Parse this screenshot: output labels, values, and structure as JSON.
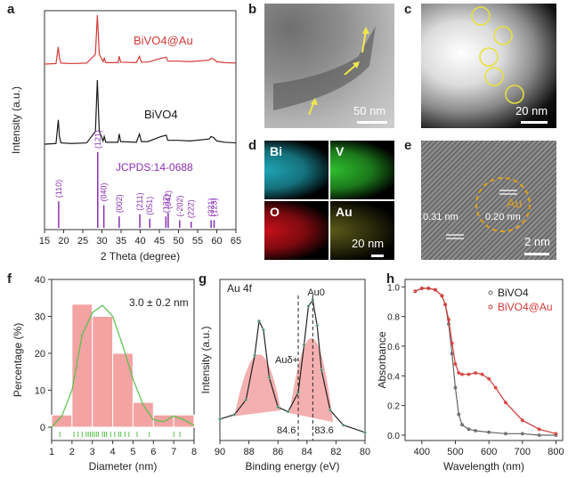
{
  "panels": {
    "a": "a",
    "b": "b",
    "c": "c",
    "d": "d",
    "e": "e",
    "f": "f",
    "g": "g",
    "h": "h"
  },
  "chart_data": [
    {
      "panel": "a",
      "type": "line",
      "xlabel": "2 Theta (degree)",
      "ylabel": "Intensity (a.u.)",
      "xlim": [
        15,
        65
      ],
      "xticks": [
        15,
        20,
        25,
        30,
        35,
        40,
        45,
        50,
        55,
        60,
        65
      ],
      "series": [
        {
          "name": "BiVO4@Au",
          "color": "#d33a36",
          "x": [
            15,
            18,
            18.6,
            18.9,
            19.3,
            22,
            26,
            28.3,
            28.8,
            29.3,
            30.3,
            30.6,
            31,
            34.2,
            34.5,
            34.9,
            39,
            39.8,
            40.3,
            42,
            45.5,
            46.8,
            47.2,
            50,
            53,
            58,
            58.5,
            59.2,
            60,
            62,
            65
          ],
          "y": [
            0,
            0.01,
            0.35,
            0.12,
            0.02,
            0.01,
            0.02,
            0.2,
            1.0,
            0.2,
            0.05,
            0.12,
            0.03,
            0.03,
            0.16,
            0.04,
            0.03,
            0.16,
            0.04,
            0.04,
            0.12,
            0.14,
            0.06,
            0.06,
            0.05,
            0.08,
            0.12,
            0.1,
            0.05,
            0.03,
            0.02
          ]
        },
        {
          "name": "BiVO4",
          "color": "#1a1a1a",
          "x": [
            15,
            18,
            18.6,
            18.9,
            19.3,
            22,
            26,
            28.3,
            28.8,
            29.3,
            30.3,
            30.6,
            31,
            34.2,
            34.5,
            34.9,
            39,
            39.8,
            40.3,
            42,
            45.5,
            46.8,
            47.2,
            50,
            53,
            58,
            58.5,
            59.2,
            60,
            62,
            65
          ],
          "y": [
            0,
            0.01,
            0.38,
            0.12,
            0.02,
            0.01,
            0.02,
            0.2,
            1.0,
            0.2,
            0.05,
            0.12,
            0.03,
            0.03,
            0.16,
            0.04,
            0.03,
            0.16,
            0.04,
            0.04,
            0.12,
            0.14,
            0.06,
            0.06,
            0.05,
            0.08,
            0.12,
            0.1,
            0.05,
            0.03,
            0.02
          ]
        }
      ],
      "reference": {
        "name": "JCPDS:14-0688",
        "color": "#8b2fb5",
        "peaks": [
          {
            "x": 18.7,
            "h": 0.35,
            "label": "(110)"
          },
          {
            "x": 28.9,
            "h": 1.0,
            "label": "(121)"
          },
          {
            "x": 30.5,
            "h": 0.3,
            "label": "(040)"
          },
          {
            "x": 34.5,
            "h": 0.15,
            "label": "(002)"
          },
          {
            "x": 39.9,
            "h": 0.18,
            "label": "(211)"
          },
          {
            "x": 42.5,
            "h": 0.12,
            "label": "(051)"
          },
          {
            "x": 46.7,
            "h": 0.15,
            "label": "(132)"
          },
          {
            "x": 47.3,
            "h": 0.2,
            "label": "(042)"
          },
          {
            "x": 50.3,
            "h": 0.1,
            "label": "(-202)"
          },
          {
            "x": 53.3,
            "h": 0.08,
            "label": "(222)"
          },
          {
            "x": 58.5,
            "h": 0.1,
            "label": "(321)"
          },
          {
            "x": 59.3,
            "h": 0.1,
            "label": "(123)"
          }
        ]
      }
    },
    {
      "panel": "f",
      "type": "bar",
      "xlabel": "Diameter (nm)",
      "ylabel": "Percentage (%)",
      "annotation": "3.0 ± 0.2 nm",
      "xlim": [
        1,
        8
      ],
      "ylim": [
        0,
        40
      ],
      "xticks": [
        1,
        2,
        3,
        4,
        5,
        6,
        7,
        8
      ],
      "yticks": [
        0,
        10,
        20,
        30,
        40
      ],
      "bins": [
        [
          1,
          2
        ],
        [
          2,
          3
        ],
        [
          3,
          4
        ],
        [
          4,
          5
        ],
        [
          5,
          6
        ],
        [
          6,
          7
        ],
        [
          7,
          8
        ]
      ],
      "values": [
        3.3,
        33.3,
        30,
        20,
        6.7,
        3.3,
        3.3
      ],
      "fit": {
        "x": [
          1,
          1.5,
          2,
          2.5,
          3,
          3.5,
          4,
          4.5,
          5,
          5.5,
          6,
          6.5,
          7,
          7.5,
          8
        ],
        "y": [
          0,
          3,
          10,
          25,
          31,
          33,
          30,
          22,
          13,
          6,
          2,
          1.5,
          3,
          2,
          0.5
        ]
      },
      "rug": [
        1.4,
        2.1,
        2.3,
        2.5,
        2.7,
        2.8,
        2.9,
        3.0,
        3.1,
        3.2,
        3.3,
        3.5,
        3.6,
        3.7,
        3.9,
        4.1,
        4.3,
        4.4,
        4.6,
        4.8,
        5.2,
        5.8,
        7.0,
        7.3
      ]
    },
    {
      "panel": "g",
      "type": "line",
      "title": "Au 4f",
      "xlabel": "Binding energy (eV)",
      "ylabel": "Intensity (a.u.)",
      "xlim": [
        90,
        80
      ],
      "xticks": [
        90,
        88,
        86,
        84,
        82,
        80
      ],
      "annotations": [
        {
          "text": "Au0",
          "x": 83.6
        },
        {
          "text": "Auδ+",
          "x": 84.6
        },
        {
          "text": "84.6",
          "x": 84.6
        },
        {
          "text": "83.6",
          "x": 83.6
        }
      ],
      "x": [
        90,
        89,
        88.2,
        87.6,
        87.3,
        87.0,
        86.6,
        86,
        85.3,
        84.6,
        84.2,
        83.9,
        83.6,
        83.3,
        83,
        82.4,
        81.5,
        80
      ],
      "y": [
        0.12,
        0.15,
        0.25,
        0.55,
        0.78,
        0.72,
        0.4,
        0.2,
        0.17,
        0.3,
        0.62,
        0.88,
        0.92,
        0.75,
        0.45,
        0.18,
        0.08,
        0.03
      ]
    },
    {
      "panel": "h",
      "type": "line",
      "xlabel": "Wavelength (nm)",
      "ylabel": "Absorbance",
      "xlim": [
        350,
        820
      ],
      "ylim": [
        0,
        1.05
      ],
      "xticks": [
        400,
        500,
        600,
        700,
        800
      ],
      "yticks": [
        0.0,
        0.2,
        0.4,
        0.6,
        0.8,
        1.0
      ],
      "series": [
        {
          "name": "BiVO4",
          "color": "#666666",
          "x": [
            380,
            400,
            420,
            440,
            460,
            470,
            480,
            490,
            500,
            510,
            520,
            540,
            560,
            600,
            650,
            700,
            750,
            800
          ],
          "y": [
            0.97,
            0.99,
            0.99,
            0.98,
            0.94,
            0.88,
            0.75,
            0.55,
            0.32,
            0.14,
            0.07,
            0.04,
            0.03,
            0.02,
            0.01,
            0.01,
            0.0,
            0.0
          ]
        },
        {
          "name": "BiVO4@Au",
          "color": "#d33a36",
          "x": [
            380,
            400,
            420,
            440,
            460,
            470,
            480,
            490,
            500,
            510,
            520,
            540,
            560,
            580,
            600,
            620,
            650,
            700,
            750,
            800
          ],
          "y": [
            0.97,
            0.99,
            0.99,
            0.98,
            0.94,
            0.88,
            0.78,
            0.62,
            0.48,
            0.42,
            0.41,
            0.41,
            0.42,
            0.41,
            0.38,
            0.32,
            0.22,
            0.1,
            0.04,
            0.01
          ]
        }
      ]
    }
  ],
  "images": {
    "b_scale": "50 nm",
    "c_scale": "20 nm",
    "d_scale": "20 nm",
    "e_scale": "2 nm",
    "d_maps": [
      "Bi",
      "V",
      "O",
      "Au"
    ],
    "e_annot_a": "0.31 nm",
    "e_annot_b": "0.20 nm",
    "e_annot_au": "Au"
  },
  "colors": {
    "bi": "#1fa5b5",
    "v": "#2fbf2f",
    "o": "#c8101a",
    "au": "#c9c23a",
    "circle": "#e8e13a",
    "arrow": "#f1e64a",
    "ring": "#e1a21a"
  }
}
